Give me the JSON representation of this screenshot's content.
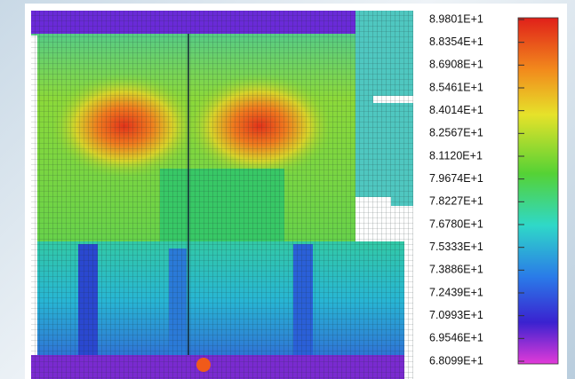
{
  "colorbar": {
    "labels": [
      "8.9801E+1",
      "8.8354E+1",
      "8.6908E+1",
      "8.5461E+1",
      "8.4014E+1",
      "8.2567E+1",
      "8.1120E+1",
      "7.9674E+1",
      "7.8227E+1",
      "7.6780E+1",
      "7.5333E+1",
      "7.3886E+1",
      "7.2439E+1",
      "7.0993E+1",
      "6.9546E+1",
      "6.8099E+1"
    ]
  }
}
